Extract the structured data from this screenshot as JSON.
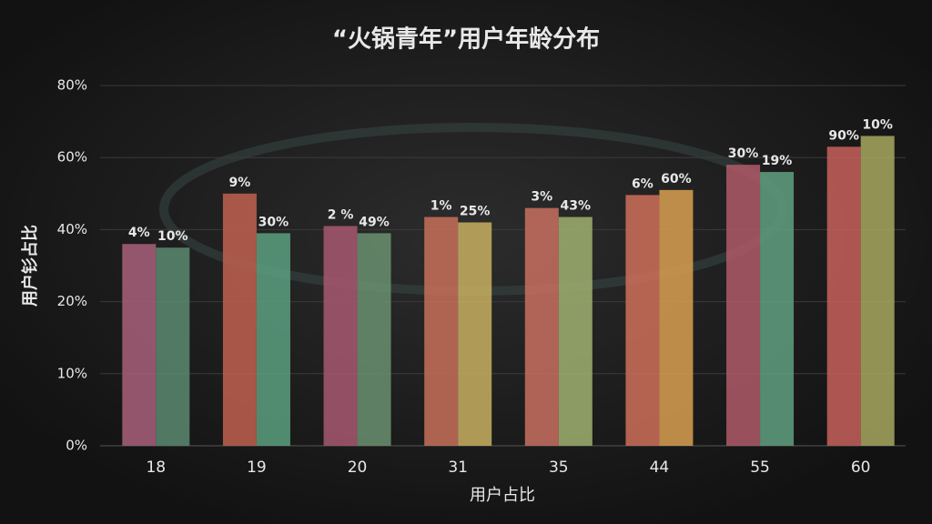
{
  "chart_data": {
    "type": "bar",
    "title": "“火锅青年”用户年龄分布",
    "ylabel": "用户钐占比",
    "xlabel": "用户占比",
    "categories": [
      "18",
      "19",
      "20",
      "31",
      "35",
      "44",
      "55",
      "60"
    ],
    "series": [
      {
        "colors": [
          "#a8607a",
          "#c0604f",
          "#a85870",
          "#c8705a",
          "#c87060",
          "#d0705a",
          "#b05a6a",
          "#c8605a"
        ],
        "values": [
          36,
          50,
          41,
          43.5,
          46,
          49.6,
          58,
          63
        ],
        "annotations": [
          "4%",
          "9%",
          "2 %",
          "1%",
          "3%",
          "6%",
          "30%",
          "90%"
        ]
      },
      {
        "colors": [
          "#5a8a70",
          "#5aa080",
          "#6a9070",
          "#c8b060",
          "#a0b070",
          "#d8a050",
          "#60a080",
          "#a8a860"
        ],
        "values": [
          35,
          39,
          39,
          42,
          43.5,
          51,
          56,
          66
        ],
        "annotations": [
          "10%",
          "30%",
          "49%",
          "25%",
          "43%",
          "60%",
          "19%",
          "10%"
        ]
      }
    ],
    "ylim": [
      0,
      80
    ],
    "yticks": [
      {
        "value": 0,
        "label": "0%"
      },
      {
        "value": 10,
        "label": "10%"
      },
      {
        "value": 20,
        "label": "20%"
      },
      {
        "value": 40,
        "label": "40%"
      },
      {
        "value": 60,
        "label": "60%"
      },
      {
        "value": 80,
        "label": "80%"
      }
    ],
    "grid": true
  }
}
